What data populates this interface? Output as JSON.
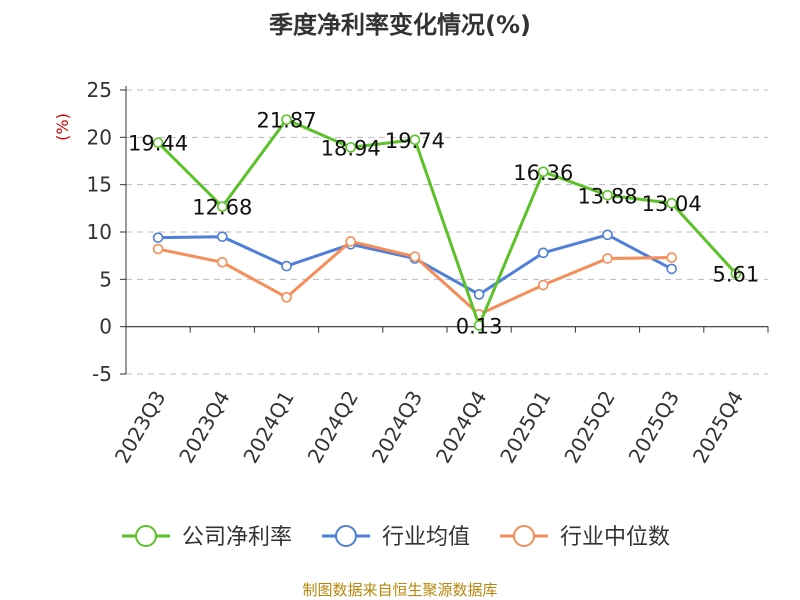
{
  "chart_data": {
    "type": "line",
    "title": "季度净利率变化情况(%)",
    "ylabel": "(%)",
    "ylim": [
      -5,
      25
    ],
    "yticks": [
      -5,
      0,
      5,
      10,
      15,
      20,
      25
    ],
    "grid": "horizontal-dashed",
    "legend_position": "bottom",
    "categories": [
      "2023Q3",
      "2023Q4",
      "2024Q1",
      "2024Q2",
      "2024Q3",
      "2024Q4",
      "2025Q1",
      "2025Q2",
      "2025Q3",
      "2025Q4"
    ],
    "series": [
      {
        "name": "公司净利率",
        "color": "#5cc22a",
        "labeled": true,
        "values": [
          19.44,
          12.68,
          21.87,
          18.94,
          19.74,
          0.13,
          16.36,
          13.88,
          13.04,
          5.61
        ]
      },
      {
        "name": "行业均值",
        "color": "#4f7fd8",
        "labeled": false,
        "values": [
          9.4,
          9.5,
          6.4,
          8.7,
          7.2,
          3.4,
          7.8,
          9.7,
          6.1,
          null
        ]
      },
      {
        "name": "行业中位数",
        "color": "#f58e59",
        "labeled": false,
        "values": [
          8.2,
          6.8,
          3.1,
          9.0,
          7.4,
          1.3,
          4.4,
          7.2,
          7.3,
          null
        ]
      }
    ]
  },
  "source_text": "制图数据来自恒生聚源数据库",
  "colors": {
    "title": "#333333",
    "ylabel": "#cc0000",
    "source": "#b8860b",
    "grid": "#bbbbbb"
  }
}
